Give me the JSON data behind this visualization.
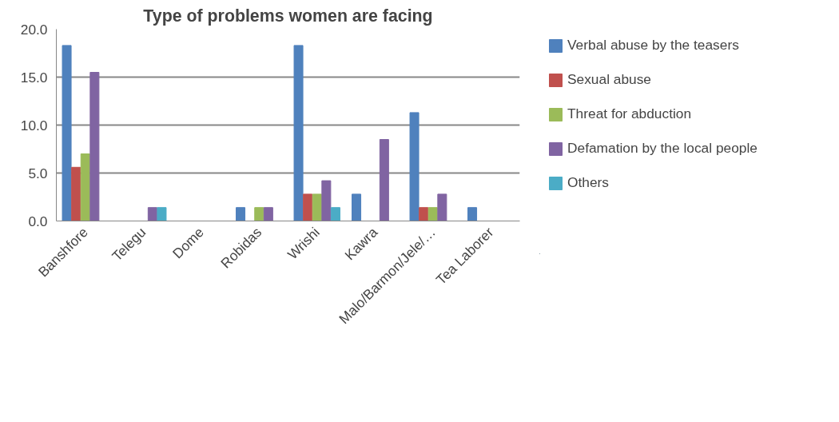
{
  "chart_data": {
    "type": "bar",
    "title": "Type of problems women are facing",
    "categories": [
      "Banshfore",
      "Telegu",
      "Dome",
      "Robidas",
      "Wrishi",
      "Kawra",
      "Malo/Barmon/Jele/…",
      "Tea Laborer"
    ],
    "series": [
      {
        "name": "Verbal abuse by the teasers",
        "color": "#4f81bd",
        "values": [
          18.3,
          0,
          0,
          1.4,
          18.3,
          2.8,
          11.3,
          1.4
        ]
      },
      {
        "name": "Sexual abuse",
        "color": "#c0504d",
        "values": [
          5.6,
          0,
          0,
          0,
          2.8,
          0,
          1.4,
          0
        ]
      },
      {
        "name": "Threat for abduction",
        "color": "#9bbb59",
        "values": [
          7.0,
          0,
          0,
          1.4,
          2.8,
          0,
          1.4,
          0
        ]
      },
      {
        "name": "Defamation by the local people",
        "color": "#8064a2",
        "values": [
          15.5,
          1.4,
          0,
          1.4,
          4.2,
          8.5,
          2.8,
          0
        ]
      },
      {
        "name": "Others",
        "color": "#4bacc6",
        "values": [
          0,
          1.4,
          0,
          0,
          1.4,
          0,
          0,
          0
        ]
      }
    ],
    "ylim": [
      0,
      20
    ],
    "yticks": [
      {
        "value": 0,
        "label": "0.0"
      },
      {
        "value": 5,
        "label": "5.0"
      },
      {
        "value": 10,
        "label": "10.0"
      },
      {
        "value": 15,
        "label": "15.0"
      },
      {
        "value": 20,
        "label": "20.0"
      }
    ],
    "grid": "y",
    "legend": "right"
  }
}
